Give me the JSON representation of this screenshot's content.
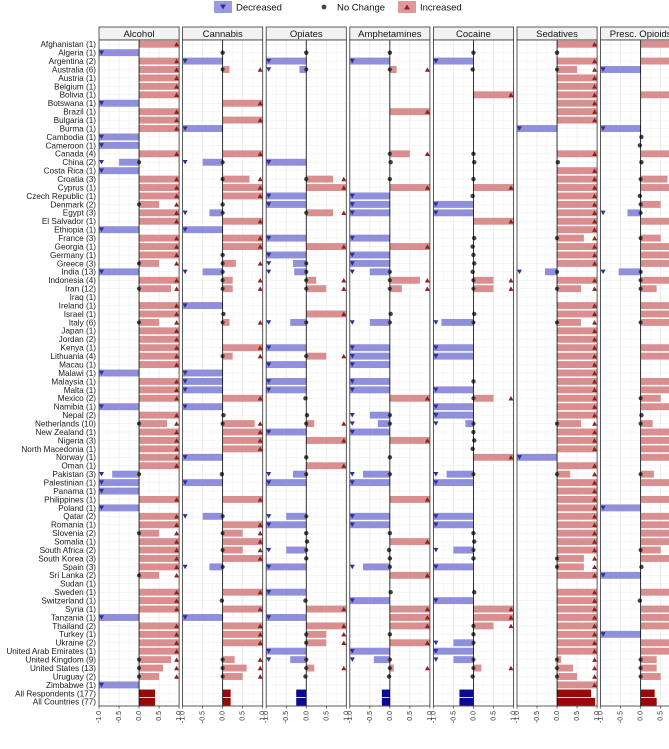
{
  "chart_data": {
    "type": "bar",
    "orientation": "horizontal",
    "x_range": [
      -1.0,
      1.0
    ],
    "x_ticks": [
      "-1.0",
      "-0.5",
      "0.0",
      "0.5",
      "1.0"
    ],
    "legend": [
      {
        "key": "dec",
        "label": "Decreased",
        "color": "#6b6bd6"
      },
      {
        "key": "nc",
        "label": "No Change",
        "color": "#444444"
      },
      {
        "key": "inc",
        "label": "Increased",
        "color": "#d06b6b"
      }
    ],
    "colors": {
      "dec_bar": "#8f8fdc",
      "inc_bar": "#d98f8f",
      "dec_point": "#2f2f9a",
      "nc_point": "#444444",
      "inc_point": "#8e2020",
      "agg_dec": "#0a0a96",
      "agg_inc": "#960a0a"
    },
    "substances": [
      "Alcohol",
      "Cannabis",
      "Opiates",
      "Amphetamines",
      "Cocaine",
      "Sedatives",
      "Presc. Opioids"
    ],
    "countries": [
      {
        "label": "Afghanistan (1)",
        "values": [
          1,
          null,
          null,
          null,
          null,
          1,
          1
        ]
      },
      {
        "label": "Algeria (1)",
        "values": [
          -1,
          0,
          0,
          0,
          0,
          0,
          null
        ]
      },
      {
        "label": "Argentina (2)",
        "values": [
          1,
          -1,
          -1,
          -1,
          -1,
          1,
          1
        ]
      },
      {
        "label": "Australia (6)",
        "values": [
          1,
          0.17,
          -0.17,
          0.17,
          0,
          0.5,
          -1
        ]
      },
      {
        "label": "Austria (1)",
        "values": [
          1,
          null,
          null,
          null,
          null,
          1,
          null
        ]
      },
      {
        "label": "Belgium (1)",
        "values": [
          1,
          null,
          null,
          null,
          null,
          1,
          null
        ]
      },
      {
        "label": "Bolivia (1)",
        "values": [
          1,
          null,
          null,
          null,
          1,
          1,
          1
        ]
      },
      {
        "label": "Botswana (1)",
        "values": [
          -1,
          1,
          null,
          null,
          null,
          1,
          null
        ]
      },
      {
        "label": "Brazil (1)",
        "values": [
          1,
          null,
          null,
          1,
          null,
          1,
          null
        ]
      },
      {
        "label": "Bulgaria (1)",
        "values": [
          1,
          1,
          null,
          null,
          null,
          1,
          null
        ]
      },
      {
        "label": "Burma (1)",
        "values": [
          1,
          -1,
          null,
          null,
          null,
          -1,
          -1
        ]
      },
      {
        "label": "Cambodia (1)",
        "values": [
          -1,
          null,
          null,
          null,
          null,
          null,
          0
        ]
      },
      {
        "label": "Cameroon (1)",
        "values": [
          -1,
          null,
          null,
          null,
          null,
          null,
          0
        ]
      },
      {
        "label": "Canada (4)",
        "values": [
          1,
          1,
          null,
          0.5,
          0,
          1,
          1
        ]
      },
      {
        "label": "China (2)",
        "values": [
          -0.5,
          -0.5,
          -1,
          0,
          0,
          0,
          0
        ]
      },
      {
        "label": "Costa Rica (1)",
        "values": [
          -1,
          null,
          null,
          null,
          null,
          1,
          null
        ]
      },
      {
        "label": "Croatia (3)",
        "values": [
          1,
          0.67,
          0.67,
          0,
          0,
          1,
          0.67
        ]
      },
      {
        "label": "Cyprus (1)",
        "values": [
          1,
          1,
          1,
          1,
          1,
          1,
          1
        ]
      },
      {
        "label": "Czech Republic (1)",
        "values": [
          1,
          1,
          -1,
          -1,
          0,
          1,
          0
        ]
      },
      {
        "label": "Denmark (2)",
        "values": [
          0.5,
          0,
          -1,
          -1,
          -1,
          1,
          0.5
        ]
      },
      {
        "label": "Egypt (3)",
        "values": [
          1,
          -0.33,
          0.67,
          -1,
          -1,
          1,
          -0.33
        ]
      },
      {
        "label": "El Salvador (1)",
        "values": [
          1,
          1,
          null,
          null,
          1,
          1,
          1
        ]
      },
      {
        "label": "Ethiopia (1)",
        "values": [
          -1,
          -1,
          null,
          null,
          null,
          1,
          null
        ]
      },
      {
        "label": "France (3)",
        "values": [
          1,
          1,
          -1,
          -1,
          0,
          0.67,
          0.5
        ]
      },
      {
        "label": "Georgia (1)",
        "values": [
          1,
          1,
          1,
          1,
          0,
          1,
          1
        ]
      },
      {
        "label": "Germany (1)",
        "values": [
          1,
          0,
          -1,
          -1,
          0,
          1,
          1
        ]
      },
      {
        "label": "Greece (3)",
        "values": [
          0.5,
          0.33,
          -0.33,
          -1,
          0,
          1,
          1
        ]
      },
      {
        "label": "India (13)",
        "values": [
          -1,
          -0.5,
          -0.3,
          -0.5,
          0,
          -0.3,
          -0.55
        ]
      },
      {
        "label": "Indonesia (4)",
        "values": [
          1,
          0.25,
          0.25,
          0.75,
          0.5,
          1,
          0.75
        ]
      },
      {
        "label": "Iran (12)",
        "values": [
          0.8,
          0.25,
          0.5,
          0.3,
          0.5,
          0.6,
          0.4
        ]
      },
      {
        "label": "Iraq (1)",
        "values": [
          null,
          null,
          null,
          null,
          null,
          null,
          null
        ]
      },
      {
        "label": "Ireland (1)",
        "values": [
          1,
          -1,
          null,
          null,
          null,
          1,
          1
        ]
      },
      {
        "label": "Israel (1)",
        "values": [
          1,
          0,
          1,
          0,
          0,
          1,
          1
        ]
      },
      {
        "label": "Italy (6)",
        "values": [
          0.5,
          0.17,
          -0.4,
          -0.5,
          -0.8,
          0.6,
          0.8
        ]
      },
      {
        "label": "Japan (1)",
        "values": [
          1,
          null,
          null,
          null,
          null,
          1,
          null
        ]
      },
      {
        "label": "Jordan (2)",
        "values": [
          1,
          null,
          null,
          null,
          null,
          1,
          null
        ]
      },
      {
        "label": "Kenya (1)",
        "values": [
          1,
          1,
          -1,
          -1,
          -1,
          1,
          1
        ]
      },
      {
        "label": "Lithuania (4)",
        "values": [
          1,
          0.25,
          0.5,
          -1,
          -1,
          1,
          1
        ]
      },
      {
        "label": "Macau (1)",
        "values": [
          1,
          null,
          -1,
          -1,
          null,
          1,
          null
        ]
      },
      {
        "label": "Malawi (1)",
        "values": [
          -1,
          -1,
          null,
          null,
          null,
          1,
          null
        ]
      },
      {
        "label": "Malaysia (1)",
        "values": [
          1,
          -1,
          -1,
          -1,
          0,
          1,
          1
        ]
      },
      {
        "label": "Malta (1)",
        "values": [
          1,
          -1,
          -1,
          -1,
          -1,
          1,
          1
        ]
      },
      {
        "label": "Mexico (2)",
        "values": [
          1,
          1,
          0,
          1,
          0.5,
          1,
          0.5
        ]
      },
      {
        "label": "Namibia (1)",
        "values": [
          -1,
          -1,
          null,
          null,
          -1,
          1,
          1
        ]
      },
      {
        "label": "Nepal (2)",
        "values": [
          1,
          0,
          0,
          -0.5,
          -1,
          1,
          0
        ]
      },
      {
        "label": "Netherlands (10)",
        "values": [
          0.7,
          0.8,
          0.2,
          -0.3,
          -0.2,
          0.6,
          0.3
        ]
      },
      {
        "label": "New Zealand (1)",
        "values": [
          1,
          1,
          -1,
          -1,
          0,
          1,
          1
        ]
      },
      {
        "label": "Nigeria (3)",
        "values": [
          1,
          1,
          1,
          1,
          0,
          1,
          1
        ]
      },
      {
        "label": "North Macedonia (1)",
        "values": [
          1,
          1,
          null,
          null,
          0,
          1,
          1
        ]
      },
      {
        "label": "Norway (1)",
        "values": [
          1,
          -1,
          0,
          0,
          1,
          -1,
          1
        ]
      },
      {
        "label": "Oman (1)",
        "values": [
          1,
          null,
          1,
          null,
          null,
          1,
          null
        ]
      },
      {
        "label": "Pakistan (3)",
        "values": [
          -0.67,
          0,
          -0.33,
          -0.67,
          -0.67,
          0.33,
          0.33
        ]
      },
      {
        "label": "Palestinian (1)",
        "values": [
          -1,
          -1,
          -1,
          -1,
          -1,
          1,
          1
        ]
      },
      {
        "label": "Panama (1)",
        "values": [
          -1,
          null,
          null,
          null,
          null,
          1,
          null
        ]
      },
      {
        "label": "Philippines (1)",
        "values": [
          1,
          1,
          null,
          1,
          null,
          1,
          1
        ]
      },
      {
        "label": "Poland (1)",
        "values": [
          -1,
          null,
          null,
          null,
          null,
          1,
          -1
        ]
      },
      {
        "label": "Qatar (2)",
        "values": [
          1,
          -0.5,
          -0.5,
          -1,
          -1,
          1,
          1
        ]
      },
      {
        "label": "Romania (1)",
        "values": [
          1,
          1,
          -1,
          -1,
          -1,
          1,
          1
        ]
      },
      {
        "label": "Slovenia (2)",
        "values": [
          0.5,
          0.5,
          0,
          0,
          0,
          1,
          1
        ]
      },
      {
        "label": "Somalia (1)",
        "values": [
          1,
          1,
          0,
          1,
          0,
          1,
          1
        ]
      },
      {
        "label": "South Africa (2)",
        "values": [
          1,
          0.5,
          -0.5,
          0,
          -0.5,
          1,
          0.5
        ]
      },
      {
        "label": "South Korea (3)",
        "values": [
          1,
          1,
          0,
          0,
          0,
          0.67,
          1
        ]
      },
      {
        "label": "Spain (3)",
        "values": [
          1,
          -0.33,
          -1,
          -0.67,
          -1,
          0.67,
          0
        ]
      },
      {
        "label": "Sri Lanka (2)",
        "values": [
          0.5,
          null,
          null,
          1,
          null,
          1,
          -1
        ]
      },
      {
        "label": "Sudan (1)",
        "values": [
          null,
          null,
          null,
          null,
          null,
          null,
          null
        ]
      },
      {
        "label": "Sweden (1)",
        "values": [
          1,
          1,
          -1,
          0,
          0,
          1,
          1
        ]
      },
      {
        "label": "Switzerland (1)",
        "values": [
          1,
          0,
          0,
          -1,
          -1,
          1,
          0
        ]
      },
      {
        "label": "Syria (1)",
        "values": [
          1,
          1,
          1,
          1,
          1,
          1,
          1
        ]
      },
      {
        "label": "Tanzania (1)",
        "values": [
          -1,
          -1,
          -1,
          1,
          1,
          1,
          1
        ]
      },
      {
        "label": "Thailand (2)",
        "values": [
          1,
          1,
          1,
          1,
          0.5,
          1,
          1
        ]
      },
      {
        "label": "Turkey (1)",
        "values": [
          1,
          1,
          0.5,
          0,
          0,
          1,
          -1
        ]
      },
      {
        "label": "Ukraine (2)",
        "values": [
          1,
          1,
          0.5,
          1,
          -0.5,
          1,
          1
        ]
      },
      {
        "label": "United Arab Emirates (1)",
        "values": [
          1,
          null,
          -1,
          -1,
          -1,
          1,
          1
        ]
      },
      {
        "label": "United Kingdom (9)",
        "values": [
          0.8,
          0.3,
          -0.4,
          -0.4,
          -0.5,
          0.1,
          0.4
        ]
      },
      {
        "label": "United States (13)",
        "values": [
          0.6,
          0.6,
          0.2,
          0.1,
          0.2,
          0.4,
          0.4
        ]
      },
      {
        "label": "Uruguay (2)",
        "values": [
          0.5,
          0.5,
          0,
          0,
          0,
          0.5,
          0.5
        ]
      },
      {
        "label": "Zimbabwe (1)",
        "values": [
          -1,
          null,
          null,
          null,
          null,
          1,
          null
        ]
      }
    ],
    "aggregates": [
      {
        "label": "All Respondents (177)",
        "values": [
          0.4,
          0.2,
          -0.25,
          -0.2,
          -0.35,
          0.85,
          0.35
        ]
      },
      {
        "label": "All Countries (77)",
        "values": [
          0.4,
          0.2,
          -0.25,
          -0.2,
          -0.35,
          0.95,
          0.4
        ]
      }
    ]
  }
}
